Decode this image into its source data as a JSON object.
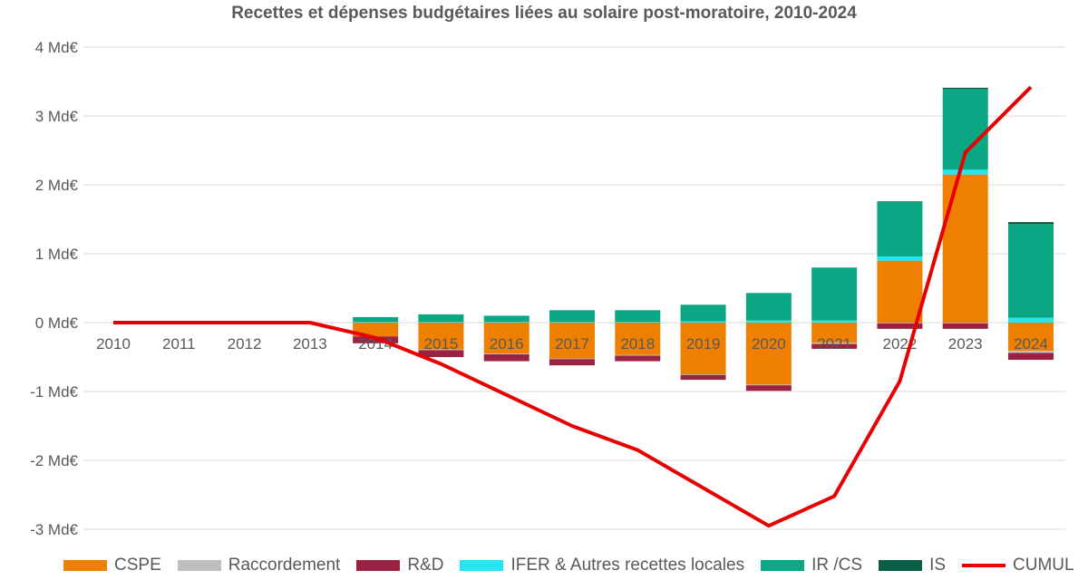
{
  "chart_data": {
    "type": "bar",
    "title": "Recettes et dépenses budgétaires liées au solaire post-moratoire, 2010-2024",
    "categories": [
      "2010",
      "2011",
      "2012",
      "2013",
      "2014",
      "2015",
      "2016",
      "2017",
      "2018",
      "2019",
      "2020",
      "2021",
      "2022",
      "2023",
      "2024"
    ],
    "y_ticks": [
      "4 Md€",
      "3 Md€",
      "2 Md€",
      "1 Md€",
      "0 Md€",
      "-1 Md€",
      "-2 Md€",
      "-3 Md€"
    ],
    "ylim": [
      -3,
      4
    ],
    "grid": true,
    "legend_position": "bottom",
    "stacked": true,
    "series": [
      {
        "name": "CSPE",
        "color": "#EE7F00",
        "values": [
          0,
          0,
          0,
          0,
          -0.2,
          -0.39,
          -0.45,
          -0.52,
          -0.47,
          -0.75,
          -0.9,
          -0.29,
          0.9,
          2.15,
          -0.41
        ]
      },
      {
        "name": "Raccordement",
        "color": "#BFBFBF",
        "values": [
          0,
          0,
          0,
          0,
          0,
          -0.01,
          -0.01,
          -0.01,
          -0.01,
          -0.01,
          -0.01,
          -0.02,
          -0.01,
          -0.01,
          -0.03
        ]
      },
      {
        "name": "R&D",
        "color": "#9B2242",
        "values": [
          0,
          0,
          0,
          0,
          -0.1,
          -0.1,
          -0.1,
          -0.09,
          -0.08,
          -0.07,
          -0.08,
          -0.07,
          -0.08,
          -0.08,
          -0.1
        ]
      },
      {
        "name": "IFER & Autres recettes locales",
        "color": "#22E6F0",
        "values": [
          0,
          0,
          0,
          0,
          0.01,
          0.01,
          0.01,
          0.01,
          0.01,
          0.02,
          0.03,
          0.03,
          0.06,
          0.07,
          0.07
        ]
      },
      {
        "name": "IR /CS",
        "color": "#0BA683",
        "values": [
          0,
          0,
          0,
          0,
          0.07,
          0.11,
          0.09,
          0.17,
          0.17,
          0.24,
          0.4,
          0.77,
          0.79,
          1.17,
          1.36
        ]
      },
      {
        "name": "IS",
        "color": "#0B5E45",
        "values": [
          0,
          0,
          0,
          0,
          0,
          0,
          0,
          0,
          0,
          0,
          0,
          0,
          0.01,
          0.02,
          0.03
        ]
      },
      {
        "name": "CUMUL",
        "type": "line",
        "color": "#E60000",
        "values": [
          0,
          0,
          0,
          0,
          -0.22,
          -0.6,
          -1.05,
          -1.5,
          -1.85,
          -2.4,
          -2.95,
          -2.52,
          -0.85,
          2.47,
          3.42
        ]
      }
    ]
  }
}
